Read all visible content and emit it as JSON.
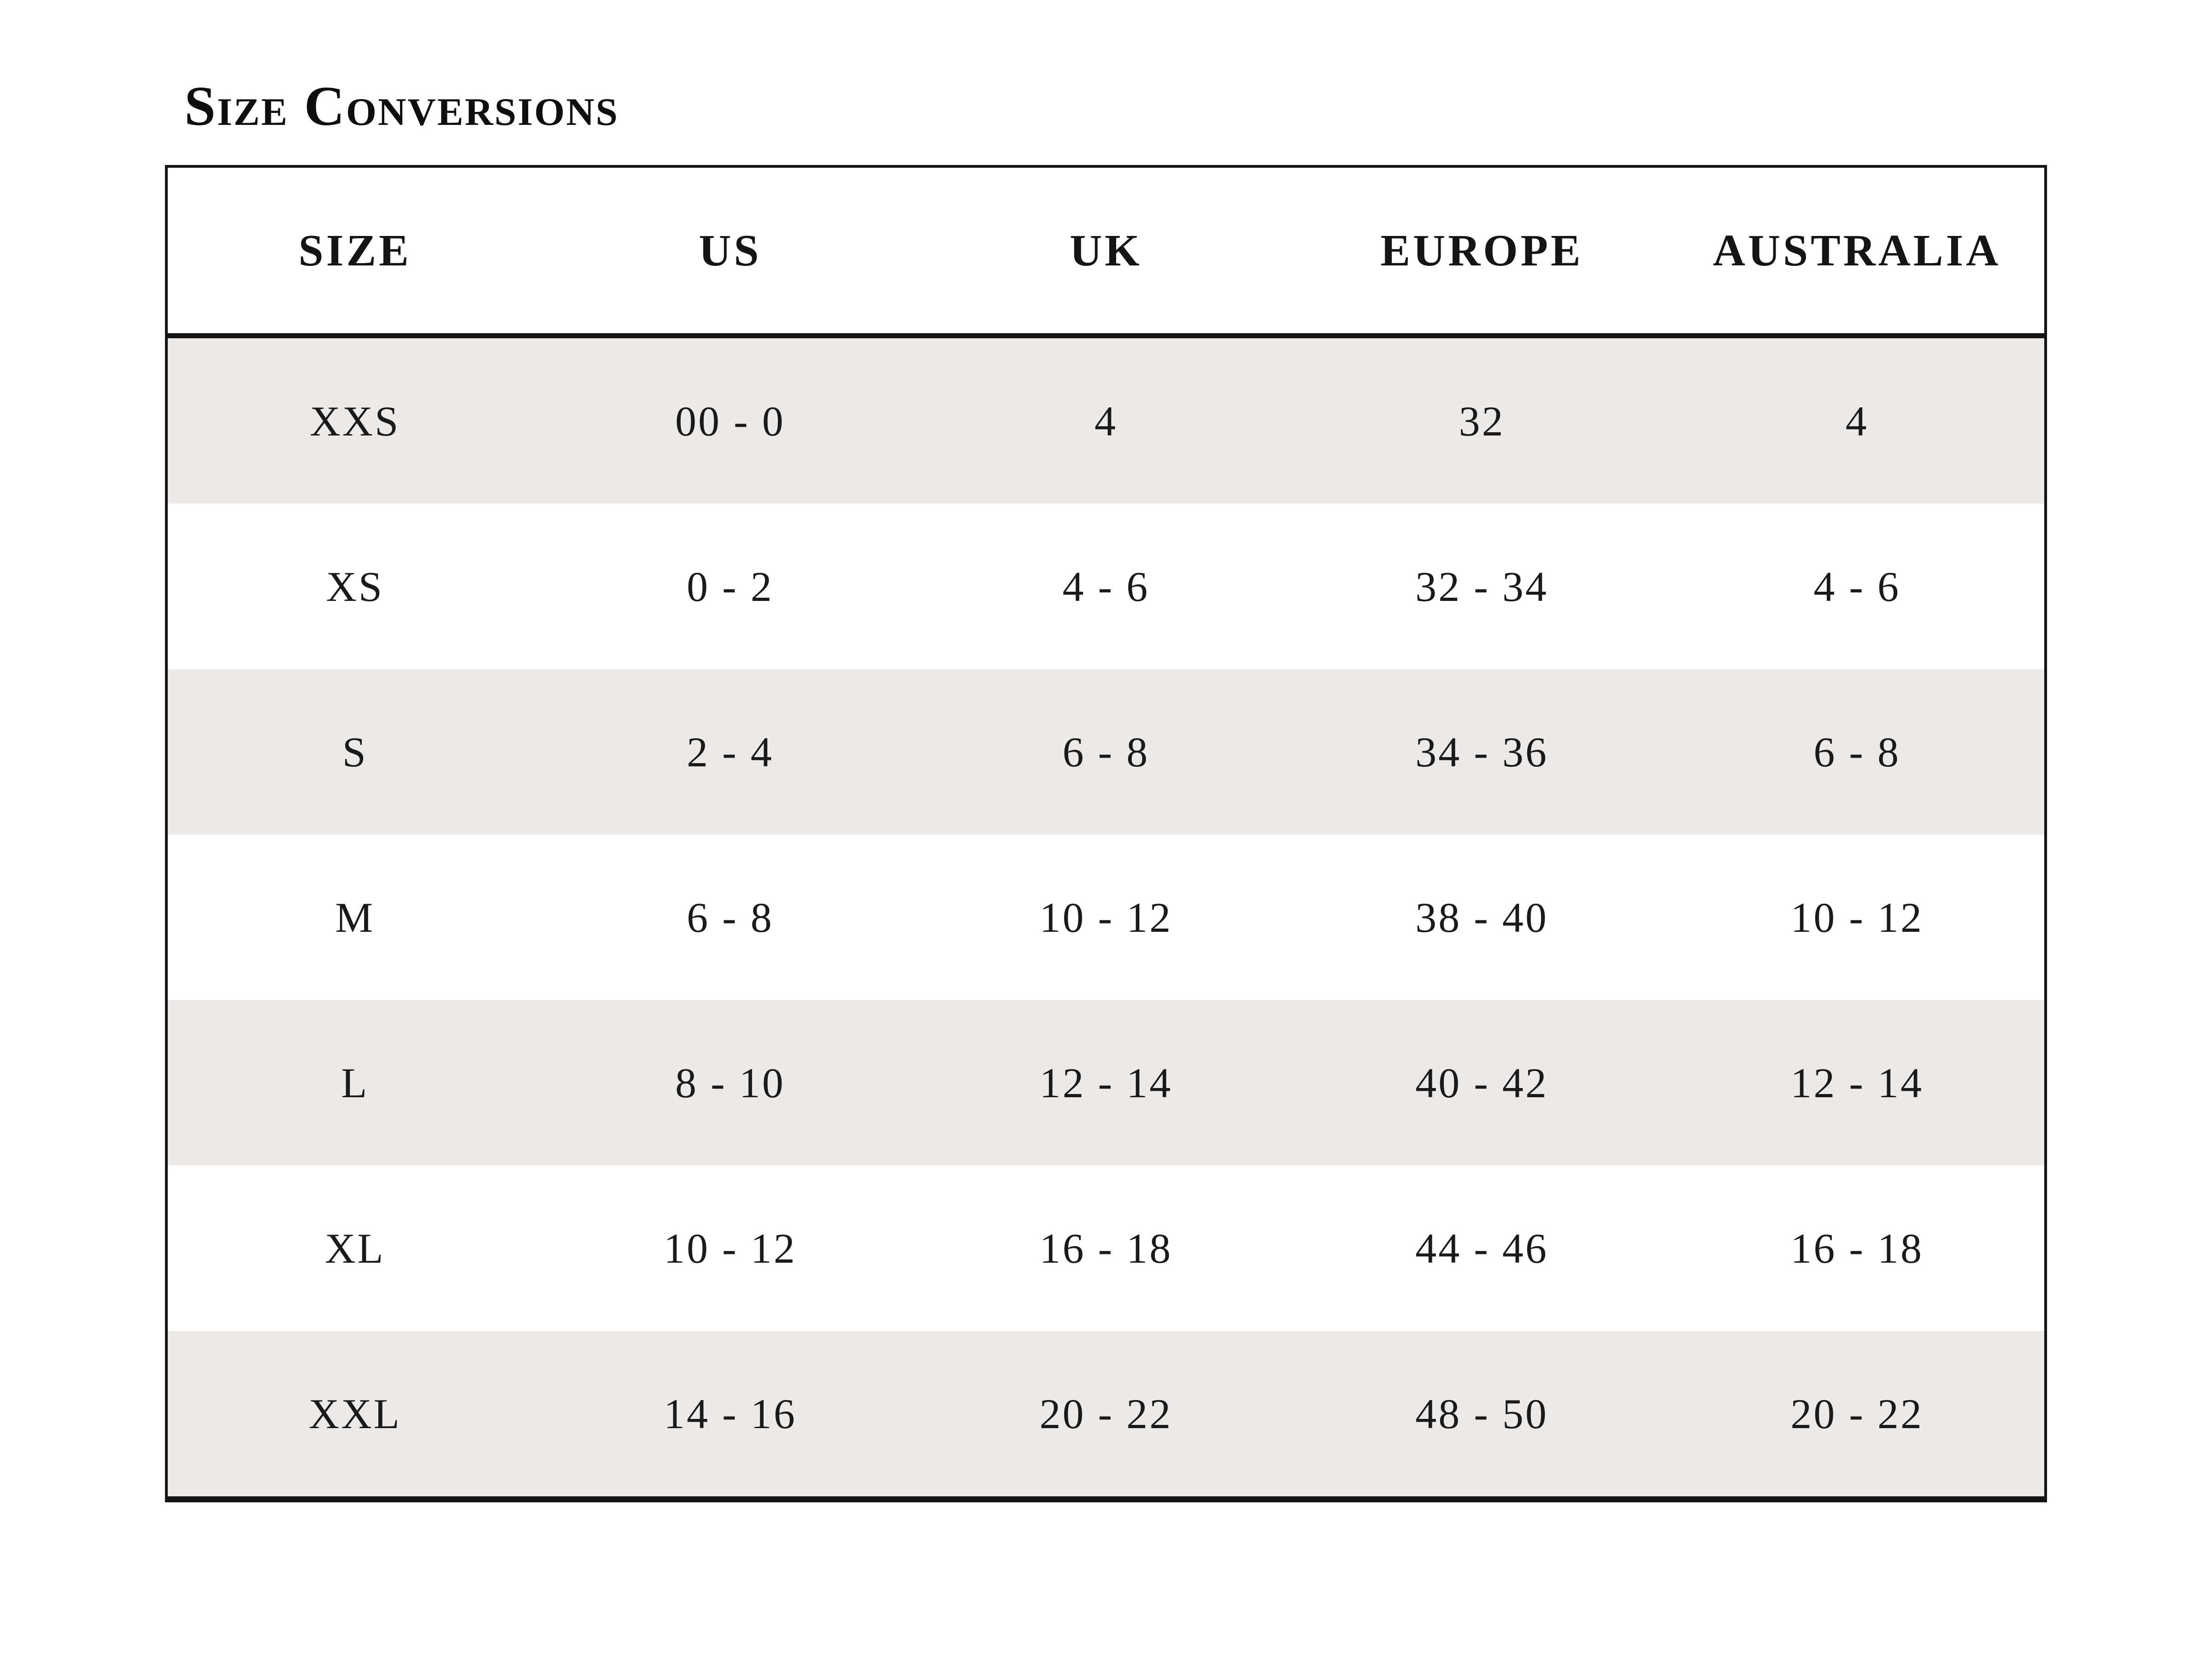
{
  "page": {
    "title": "Size Conversions"
  },
  "table": {
    "headers": [
      "SIZE",
      "US",
      "UK",
      "EUROPE",
      "AUSTRALIA"
    ],
    "rows": [
      {
        "size": "XXS",
        "us": "00 - 0",
        "uk": "4",
        "europe": "32",
        "australia": "4"
      },
      {
        "size": "XS",
        "us": "0 - 2",
        "uk": "4 - 6",
        "europe": "32 - 34",
        "australia": "4 - 6"
      },
      {
        "size": "S",
        "us": "2 - 4",
        "uk": "6 - 8",
        "europe": "34 - 36",
        "australia": "6 - 8"
      },
      {
        "size": "M",
        "us": "6 - 8",
        "uk": "10 - 12",
        "europe": "38 - 40",
        "australia": "10 - 12"
      },
      {
        "size": "L",
        "us": "8 - 10",
        "uk": "12 - 14",
        "europe": "40 - 42",
        "australia": "12 - 14"
      },
      {
        "size": "XL",
        "us": "10 - 12",
        "uk": "16 - 18",
        "europe": "44 - 46",
        "australia": "16 - 18"
      },
      {
        "size": "XXL",
        "us": "14 - 16",
        "uk": "20 - 22",
        "europe": "48 - 50",
        "australia": "20 - 22"
      }
    ]
  },
  "colors": {
    "background": "#FFFFFF",
    "row_stripe": "#EBEAE8",
    "border": "#141414",
    "text": "#141414"
  }
}
